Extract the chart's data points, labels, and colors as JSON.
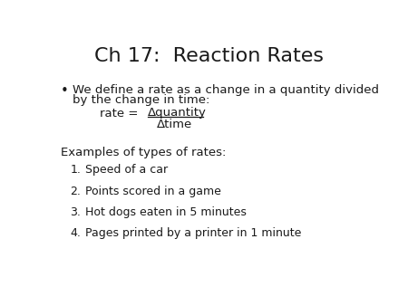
{
  "title": "Ch 17:  Reaction Rates",
  "title_fontsize": 16,
  "background_color": "#ffffff",
  "text_color": "#1a1a1a",
  "bullet_text_line1": "We define a rate as a change in a quantity divided",
  "bullet_text_line2": "by the change in time:",
  "rate_label": "rate =",
  "numerator": "Δquantity",
  "denominator": "Δtime",
  "examples_header": "Examples of types of rates:",
  "numbered_items": [
    "Speed of a car",
    "Points scored in a game",
    "Hot dogs eaten in 5 minutes",
    "Pages printed by a printer in 1 minute"
  ],
  "body_fontsize": 9.5,
  "small_fontsize": 9
}
